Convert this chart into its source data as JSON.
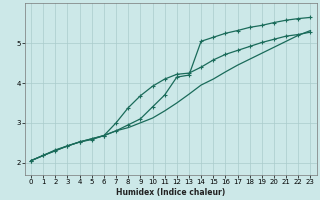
{
  "xlabel": "Humidex (Indice chaleur)",
  "ylabel": "",
  "bg_color": "#cce8e8",
  "grid_color": "#aacccc",
  "line_color": "#1a6b5a",
  "xlim": [
    -0.5,
    23.5
  ],
  "ylim": [
    1.7,
    6.0
  ],
  "xticks": [
    0,
    1,
    2,
    3,
    4,
    5,
    6,
    7,
    8,
    9,
    10,
    11,
    12,
    13,
    14,
    15,
    16,
    17,
    18,
    19,
    20,
    21,
    22,
    23
  ],
  "yticks": [
    2,
    3,
    4,
    5
  ],
  "curve1_x": [
    0,
    1,
    2,
    3,
    4,
    5,
    6,
    7,
    8,
    9,
    10,
    11,
    12,
    13,
    14,
    15,
    16,
    17,
    18,
    19,
    20,
    21,
    22,
    23
  ],
  "curve1_y": [
    2.05,
    2.18,
    2.32,
    2.42,
    2.52,
    2.58,
    2.68,
    2.8,
    2.95,
    3.1,
    3.4,
    3.7,
    4.15,
    4.2,
    5.05,
    5.15,
    5.25,
    5.32,
    5.4,
    5.45,
    5.52,
    5.58,
    5.62,
    5.65
  ],
  "curve2_x": [
    0,
    1,
    2,
    3,
    4,
    5,
    6,
    7,
    8,
    9,
    10,
    11,
    12,
    13,
    14,
    15,
    16,
    17,
    18,
    19,
    20,
    21,
    22,
    23
  ],
  "curve2_y": [
    2.05,
    2.18,
    2.3,
    2.42,
    2.52,
    2.6,
    2.68,
    3.0,
    3.38,
    3.68,
    3.92,
    4.1,
    4.22,
    4.25,
    4.4,
    4.58,
    4.72,
    4.82,
    4.92,
    5.02,
    5.1,
    5.18,
    5.22,
    5.28
  ],
  "curve3_x": [
    0,
    1,
    2,
    3,
    4,
    5,
    6,
    7,
    8,
    9,
    10,
    11,
    12,
    13,
    14,
    15,
    16,
    17,
    18,
    19,
    20,
    21,
    22,
    23
  ],
  "curve3_y": [
    2.05,
    2.18,
    2.3,
    2.42,
    2.52,
    2.6,
    2.68,
    2.8,
    2.88,
    3.0,
    3.12,
    3.3,
    3.5,
    3.72,
    3.95,
    4.1,
    4.28,
    4.45,
    4.6,
    4.75,
    4.9,
    5.05,
    5.2,
    5.32
  ]
}
